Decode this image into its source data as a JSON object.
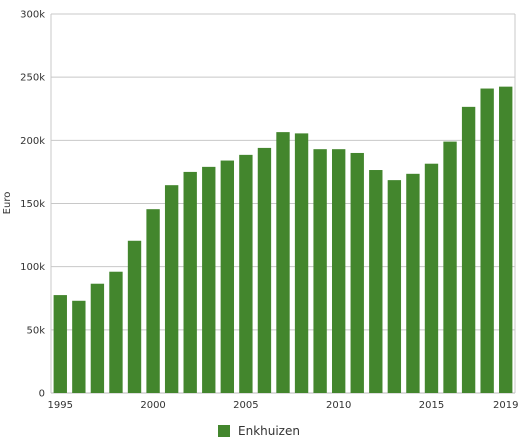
{
  "chart_data": {
    "type": "bar",
    "x": [
      1995,
      1996,
      1997,
      1998,
      1999,
      2000,
      2001,
      2002,
      2003,
      2004,
      2005,
      2006,
      2007,
      2008,
      2009,
      2010,
      2011,
      2012,
      2013,
      2014,
      2015,
      2016,
      2017,
      2018,
      2019
    ],
    "series": [
      {
        "name": "Enkhuizen",
        "color": "#43862d",
        "values": [
          77500,
          73000,
          86500,
          96000,
          120500,
          145500,
          164500,
          175000,
          179000,
          184000,
          188500,
          194000,
          206500,
          205500,
          193000,
          193000,
          190000,
          176500,
          168500,
          173500,
          181500,
          199000,
          226500,
          241000,
          242500
        ]
      }
    ],
    "ylabel": "Euro",
    "ylim": [
      0,
      300000
    ],
    "yticks": [
      0,
      50000,
      100000,
      150000,
      200000,
      250000,
      300000
    ],
    "ytick_labels": [
      "0",
      "50k",
      "100k",
      "150k",
      "200k",
      "250k",
      "300k"
    ],
    "xticks": [
      1995,
      2000,
      2005,
      2010,
      2015,
      2019
    ],
    "xtick_labels": [
      "1995",
      "2000",
      "2005",
      "2010",
      "2015",
      "2019"
    ],
    "grid": true,
    "legend_position": "bottom-center"
  }
}
